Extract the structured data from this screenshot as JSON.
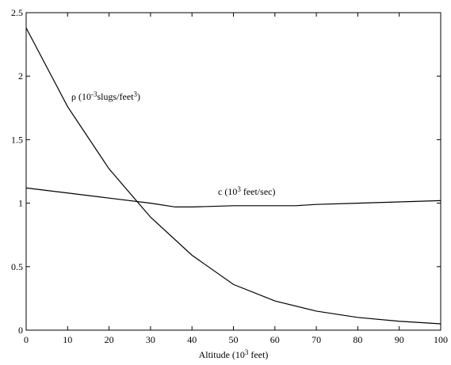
{
  "chart_data": {
    "type": "line",
    "xlabel": [
      "Altitude (10",
      "3",
      " feet)"
    ],
    "xlim": [
      0,
      100
    ],
    "xticks": [
      0,
      10,
      20,
      30,
      40,
      50,
      60,
      70,
      80,
      90,
      100
    ],
    "ylim": [
      0,
      2.5
    ],
    "yticks": [
      0,
      0.5,
      1,
      1.5,
      2,
      2.5
    ],
    "grid": false,
    "series": [
      {
        "color": "#000000",
        "x": [
          0,
          10,
          20,
          30,
          40,
          50,
          60,
          70,
          80,
          90,
          100
        ],
        "values": [
          2.38,
          1.76,
          1.27,
          0.89,
          0.59,
          0.36,
          0.23,
          0.15,
          0.1,
          0.07,
          0.05
        ]
      },
      {
        "color": "#000000",
        "x": [
          0,
          10,
          20,
          30,
          36,
          40,
          50,
          60,
          65,
          70,
          80,
          90,
          100
        ],
        "values": [
          1.12,
          1.08,
          1.04,
          1.0,
          0.97,
          0.97,
          0.98,
          0.98,
          0.98,
          0.99,
          1.0,
          1.01,
          1.02
        ]
      }
    ],
    "annotations": [
      [
        "ρ (10",
        "-3",
        "slugs/feet",
        "3",
        ")"
      ],
      [
        "c (10",
        "3",
        " feet/sec)"
      ]
    ]
  }
}
